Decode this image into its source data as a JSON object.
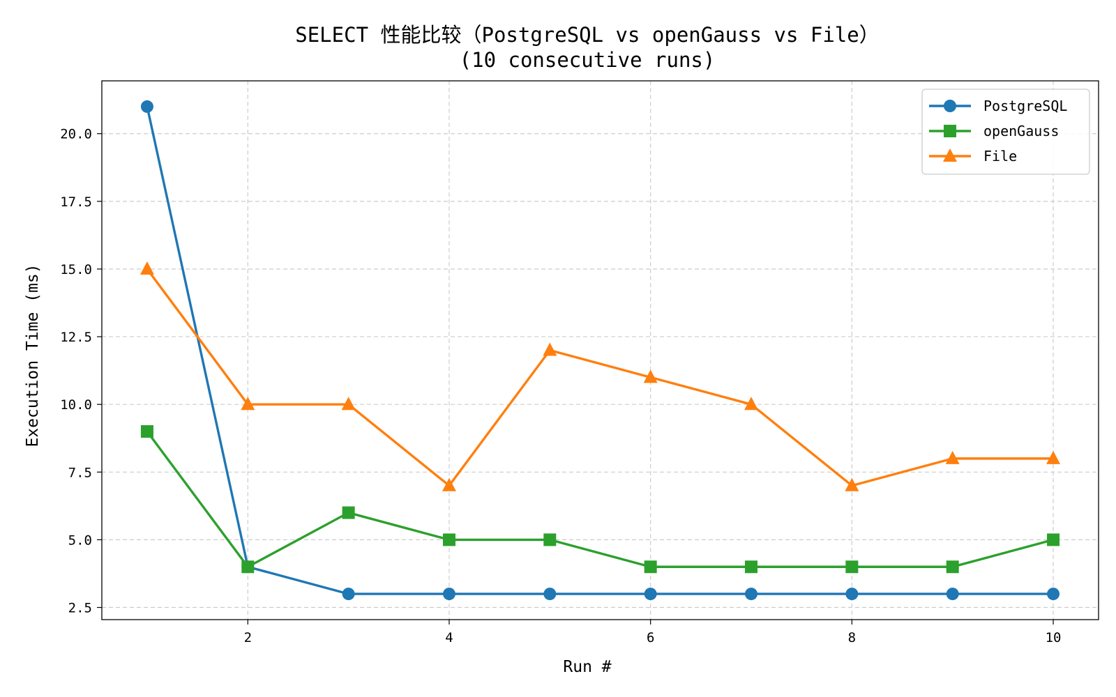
{
  "chart_data": {
    "type": "line",
    "title": "SELECT 性能比较（PostgreSQL vs openGauss vs File）",
    "subtitle": "(10 consecutive runs)",
    "xlabel": "Run #",
    "ylabel": "Execution Time (ms)",
    "x": [
      1,
      2,
      3,
      4,
      5,
      6,
      7,
      8,
      9,
      10
    ],
    "xlim": [
      0.55,
      10.45
    ],
    "ylim": [
      2.05,
      21.95
    ],
    "x_ticks": [
      2,
      4,
      6,
      8,
      10
    ],
    "x_tick_labels": [
      "2",
      "4",
      "6",
      "8",
      "10"
    ],
    "y_ticks": [
      2.5,
      5.0,
      7.5,
      10.0,
      12.5,
      15.0,
      17.5,
      20.0
    ],
    "y_tick_labels": [
      "2.5",
      "5.0",
      "7.5",
      "10.0",
      "12.5",
      "15.0",
      "17.5",
      "20.0"
    ],
    "grid": true,
    "legend_position": "top-right",
    "series": [
      {
        "name": "PostgreSQL",
        "color": "#1f77b4",
        "marker": "circle",
        "values": [
          21,
          4,
          3,
          3,
          3,
          3,
          3,
          3,
          3,
          3
        ]
      },
      {
        "name": "openGauss",
        "color": "#2ca02c",
        "marker": "square",
        "values": [
          9,
          4,
          6,
          5,
          5,
          4,
          4,
          4,
          4,
          5
        ]
      },
      {
        "name": "File",
        "color": "#ff7f0e",
        "marker": "triangle",
        "values": [
          15,
          10,
          10,
          7,
          12,
          11,
          10,
          7,
          8,
          8
        ]
      }
    ]
  }
}
